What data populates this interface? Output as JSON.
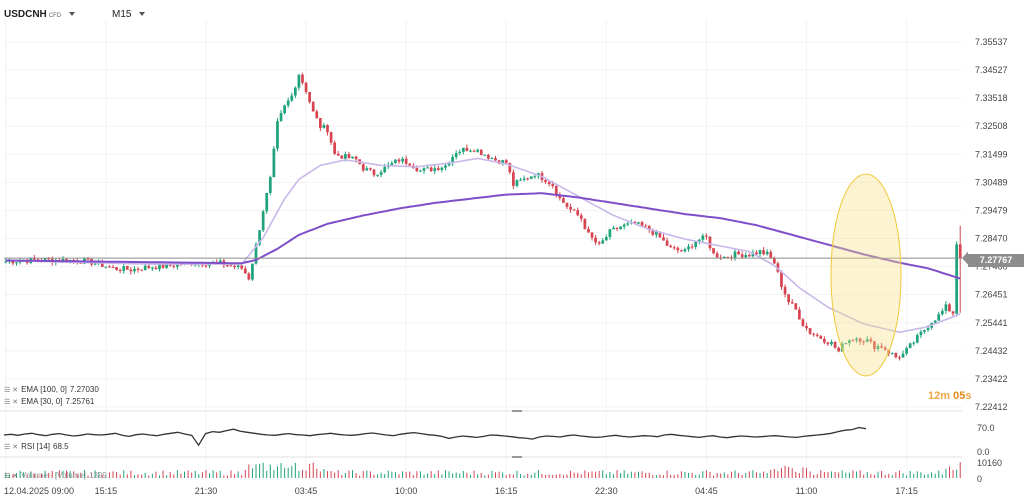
{
  "header": {
    "symbol": "USDCNH",
    "symbol_tag": "CFD",
    "timeframe": "M15"
  },
  "colors": {
    "up": "#1fa37c",
    "down": "#d64550",
    "ema100": "#7f4fc9",
    "ema30": "#c9b8ea",
    "rsi": "#333333",
    "highlight": "#f5e08a"
  },
  "chart_data": [
    {
      "type": "candlestick",
      "x_ticks": [
        "12.04.2025 09:00",
        "15:15",
        "21:30",
        "03:45",
        "10:00",
        "16:15",
        "22:30",
        "04:45",
        "11:00",
        "17:15"
      ],
      "y_ticks": [
        "7.35537",
        "7.34527",
        "7.33518",
        "7.32508",
        "7.31499",
        "7.30489",
        "7.29479",
        "7.28470",
        "7.27460",
        "7.26451",
        "7.25441",
        "7.24432",
        "7.23422",
        "7.22412"
      ],
      "ylim": [
        7.22412,
        7.35537
      ],
      "last_price": "7.27767",
      "close_path": [
        [
          0,
          7.2765
        ],
        [
          8,
          7.277
        ],
        [
          15,
          7.277
        ],
        [
          20,
          7.2768
        ],
        [
          25,
          7.276
        ],
        [
          30,
          7.274
        ],
        [
          35,
          7.2735
        ],
        [
          40,
          7.2745
        ],
        [
          45,
          7.2748
        ],
        [
          52,
          7.276
        ],
        [
          60,
          7.2758
        ],
        [
          66,
          7.274
        ],
        [
          68,
          7.2705
        ],
        [
          70,
          7.282
        ],
        [
          72,
          7.295
        ],
        [
          74,
          7.306
        ],
        [
          76,
          7.326
        ],
        [
          78,
          7.332
        ],
        [
          80,
          7.336
        ],
        [
          82,
          7.344
        ],
        [
          84,
          7.338
        ],
        [
          86,
          7.33
        ],
        [
          88,
          7.325
        ],
        [
          90,
          7.324
        ],
        [
          92,
          7.315
        ],
        [
          95,
          7.314
        ],
        [
          98,
          7.313
        ],
        [
          100,
          7.31
        ],
        [
          103,
          7.308
        ],
        [
          106,
          7.31
        ],
        [
          110,
          7.313
        ],
        [
          113,
          7.312
        ],
        [
          116,
          7.309
        ],
        [
          120,
          7.31
        ],
        [
          123,
          7.311
        ],
        [
          126,
          7.316
        ],
        [
          129,
          7.317
        ],
        [
          131,
          7.317
        ],
        [
          134,
          7.315
        ],
        [
          137,
          7.313
        ],
        [
          140,
          7.312
        ],
        [
          142,
          7.304
        ],
        [
          145,
          7.306
        ],
        [
          148,
          7.308
        ],
        [
          151,
          7.306
        ],
        [
          153,
          7.304
        ],
        [
          155,
          7.299
        ],
        [
          158,
          7.295
        ],
        [
          161,
          7.292
        ],
        [
          163,
          7.286
        ],
        [
          166,
          7.282
        ],
        [
          169,
          7.287
        ],
        [
          172,
          7.289
        ],
        [
          176,
          7.29
        ],
        [
          180,
          7.288
        ],
        [
          183,
          7.285
        ],
        [
          186,
          7.281
        ],
        [
          190,
          7.28
        ],
        [
          193,
          7.284
        ],
        [
          196,
          7.285
        ],
        [
          198,
          7.279
        ],
        [
          201,
          7.278
        ],
        [
          204,
          7.279
        ],
        [
          208,
          7.279
        ],
        [
          211,
          7.28
        ],
        [
          213,
          7.279
        ],
        [
          215,
          7.276
        ],
        [
          217,
          7.268
        ],
        [
          219,
          7.262
        ],
        [
          221,
          7.259
        ],
        [
          223,
          7.254
        ],
        [
          225,
          7.251
        ],
        [
          228,
          7.249
        ],
        [
          231,
          7.247
        ],
        [
          233,
          7.244
        ],
        [
          235,
          7.248
        ],
        [
          238,
          7.249
        ],
        [
          241,
          7.248
        ],
        [
          243,
          7.246
        ],
        [
          245,
          7.246
        ],
        [
          247,
          7.244
        ],
        [
          249,
          7.242
        ],
        [
          251,
          7.243
        ],
        [
          253,
          7.246
        ],
        [
          255,
          7.249
        ],
        [
          257,
          7.252
        ],
        [
          259,
          7.255
        ],
        [
          261,
          7.257
        ],
        [
          263,
          7.26
        ],
        [
          265,
          7.258
        ],
        [
          266,
          7.283
        ],
        [
          267,
          7.2776
        ]
      ],
      "ema_100": [
        [
          0,
          7.2768
        ],
        [
          40,
          7.2762
        ],
        [
          66,
          7.2758
        ],
        [
          70,
          7.277
        ],
        [
          76,
          7.281
        ],
        [
          82,
          7.286
        ],
        [
          90,
          7.29
        ],
        [
          100,
          7.293
        ],
        [
          110,
          7.2955
        ],
        [
          120,
          7.2975
        ],
        [
          130,
          7.299
        ],
        [
          140,
          7.3005
        ],
        [
          150,
          7.301
        ],
        [
          160,
          7.2995
        ],
        [
          170,
          7.2975
        ],
        [
          180,
          7.2955
        ],
        [
          190,
          7.2935
        ],
        [
          200,
          7.292
        ],
        [
          210,
          7.2895
        ],
        [
          220,
          7.286
        ],
        [
          230,
          7.2825
        ],
        [
          240,
          7.279
        ],
        [
          250,
          7.276
        ],
        [
          258,
          7.274
        ],
        [
          267,
          7.2703
        ]
      ],
      "ema_30": [
        [
          0,
          7.2768
        ],
        [
          40,
          7.2755
        ],
        [
          66,
          7.2755
        ],
        [
          72,
          7.285
        ],
        [
          78,
          7.299
        ],
        [
          82,
          7.306
        ],
        [
          88,
          7.311
        ],
        [
          95,
          7.313
        ],
        [
          105,
          7.311
        ],
        [
          115,
          7.3105
        ],
        [
          125,
          7.312
        ],
        [
          132,
          7.3135
        ],
        [
          140,
          7.3115
        ],
        [
          150,
          7.307
        ],
        [
          160,
          7.3
        ],
        [
          170,
          7.293
        ],
        [
          180,
          7.288
        ],
        [
          190,
          7.2845
        ],
        [
          200,
          7.282
        ],
        [
          208,
          7.28
        ],
        [
          215,
          7.275
        ],
        [
          222,
          7.267
        ],
        [
          230,
          7.26
        ],
        [
          240,
          7.254
        ],
        [
          250,
          7.251
        ],
        [
          258,
          7.253
        ],
        [
          267,
          7.2576
        ]
      ]
    },
    {
      "type": "line",
      "name": "RSI",
      "y_ticks": [
        "70.0",
        "0.0"
      ],
      "ylim": [
        0,
        100
      ],
      "values": [
        50,
        52,
        49,
        53,
        55,
        51,
        48,
        52,
        54,
        50,
        47,
        49,
        53,
        51,
        50,
        52,
        55,
        49,
        46,
        51,
        53,
        50,
        48,
        52,
        55,
        58,
        53,
        49,
        20,
        54,
        60,
        58,
        63,
        67,
        61,
        58,
        55,
        52,
        50,
        49,
        52,
        54,
        51,
        50,
        48,
        51,
        53,
        55,
        52,
        50,
        49,
        51,
        54,
        56,
        53,
        50,
        48,
        52,
        55,
        57,
        54,
        51,
        49,
        46,
        40,
        44,
        47,
        45,
        43,
        46,
        50,
        49,
        47,
        45,
        42,
        41,
        38,
        44,
        47,
        46,
        44,
        48,
        50,
        47,
        45,
        43,
        44,
        47,
        49,
        46,
        44,
        46,
        48,
        47,
        45,
        50,
        52,
        49,
        47,
        45,
        43,
        46,
        48,
        44,
        42,
        45,
        47,
        46,
        44,
        45,
        47,
        48,
        46,
        44,
        43,
        46,
        48,
        50,
        52,
        55,
        60,
        64,
        66,
        72,
        68.5
      ]
    },
    {
      "type": "bar",
      "name": "Volume",
      "y_ticks": [
        "10160",
        "0"
      ],
      "ylim": [
        0,
        10160
      ]
    }
  ],
  "indicators": {
    "ema100": {
      "label": "EMA [100, 0]",
      "value": "7.27030"
    },
    "ema30": {
      "label": "EMA [30, 0]",
      "value": "7.25761"
    },
    "rsi": {
      "label": "RSI [14]",
      "value": "68.5"
    },
    "volume": {
      "label": "Volume - [Volume]",
      "value": "1399"
    }
  },
  "timer": {
    "minutes": "12",
    "m": "m",
    "seconds": "05",
    "s": "s"
  }
}
